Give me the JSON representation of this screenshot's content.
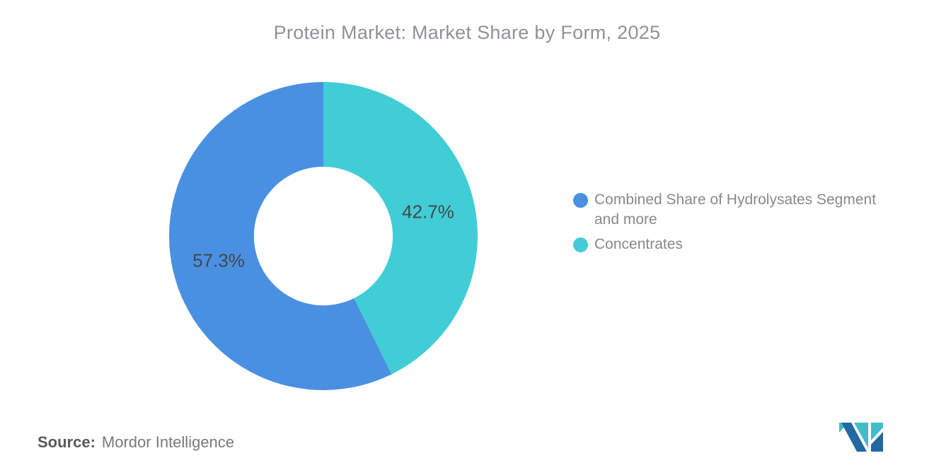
{
  "title": "Protein Market: Market Share by Form, 2025",
  "source": {
    "label": "Source:",
    "value": "Mordor Intelligence"
  },
  "logo": {
    "name": "mordor-intelligence-logo",
    "navy": "#2268A3",
    "teal": "#3FBDC9"
  },
  "chart_data": {
    "type": "pie",
    "title": "Protein Market: Market Share by Form, 2025",
    "donut": true,
    "inner_radius_ratio": 0.45,
    "start_angle": "top",
    "direction": "counterclockwise",
    "legend_position": "right",
    "background": "#ffffff",
    "label_color": "#43474c",
    "series": [
      {
        "name": "Combined Share of Hydrolysates Segment and more",
        "value": 57.3,
        "label": "57.3%",
        "color": "#4A90E2"
      },
      {
        "name": "Concentrates",
        "value": 42.7,
        "label": "42.7%",
        "color": "#41CDD5"
      }
    ]
  }
}
